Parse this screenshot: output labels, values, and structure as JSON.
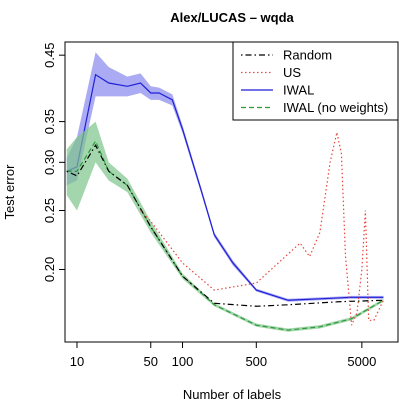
{
  "chart_data": {
    "type": "line",
    "title": "Alex/LUCAS – wqda",
    "x_label": "Number of labels",
    "y_label": "Test error",
    "xlog": true,
    "ylog": true,
    "xlim": [
      7.7,
      11000
    ],
    "ylim": [
      0.152,
      0.473
    ],
    "xticks": [
      10,
      50,
      100,
      500,
      5000
    ],
    "yticks": [
      {
        "value": 0.2,
        "label": "0.20"
      },
      {
        "value": 0.25,
        "label": "0.25"
      },
      {
        "value": 0.3,
        "label": "0.30"
      },
      {
        "value": 0.35,
        "label": "0.35"
      },
      {
        "value": 0.45,
        "label": "0.45"
      }
    ],
    "legend": "top-right",
    "series": [
      {
        "name": "Random",
        "color": "#000000",
        "style": "dotdash",
        "x": [
          8,
          10,
          15,
          20,
          30,
          50,
          100,
          200,
          500,
          1000,
          3000,
          8000
        ],
        "values": [
          0.29,
          0.285,
          0.32,
          0.29,
          0.275,
          0.235,
          0.195,
          0.176,
          0.174,
          0.175,
          0.177,
          0.178
        ]
      },
      {
        "name": "US",
        "color": "#e8453c",
        "style": "dotted",
        "x": [
          40,
          50,
          100,
          200,
          500,
          1300,
          1600,
          2000,
          2500,
          2900,
          3200,
          3500,
          4000,
          4500,
          5000,
          5400,
          5800,
          6500,
          8000
        ],
        "values": [
          0.25,
          0.24,
          0.205,
          0.185,
          0.19,
          0.221,
          0.21,
          0.23,
          0.3,
          0.336,
          0.31,
          0.21,
          0.162,
          0.17,
          0.2,
          0.25,
          0.165,
          0.165,
          0.178
        ]
      },
      {
        "name": "IWAL",
        "color": "#1f1fd6",
        "style": "solid",
        "band": "#8888ee",
        "x": [
          8,
          10,
          15,
          20,
          30,
          40,
          50,
          60,
          80,
          100,
          150,
          200,
          300,
          500,
          1000,
          2000,
          4000,
          8000
        ],
        "values": [
          0.29,
          0.295,
          0.418,
          0.405,
          0.4,
          0.405,
          0.39,
          0.39,
          0.38,
          0.34,
          0.27,
          0.228,
          0.205,
          0.185,
          0.178,
          0.179,
          0.18,
          0.18
        ],
        "lower": [
          0.275,
          0.28,
          0.385,
          0.385,
          0.385,
          0.39,
          0.38,
          0.38,
          0.372,
          0.335,
          0.267,
          0.226,
          0.203,
          0.184,
          0.177,
          0.178,
          0.179,
          0.179
        ],
        "upper": [
          0.305,
          0.33,
          0.455,
          0.43,
          0.415,
          0.42,
          0.4,
          0.398,
          0.388,
          0.345,
          0.273,
          0.23,
          0.207,
          0.186,
          0.179,
          0.18,
          0.181,
          0.181
        ]
      },
      {
        "name": "IWAL (no weights)",
        "color": "#2e9a3c",
        "style": "dashed",
        "band": "#7ec48a",
        "x": [
          8,
          10,
          15,
          20,
          30,
          50,
          100,
          200,
          500,
          1000,
          2000,
          4000,
          8000
        ],
        "values": [
          0.29,
          0.29,
          0.325,
          0.29,
          0.275,
          0.235,
          0.195,
          0.175,
          0.162,
          0.159,
          0.161,
          0.166,
          0.178
        ],
        "lower": [
          0.265,
          0.25,
          0.3,
          0.28,
          0.268,
          0.23,
          0.193,
          0.174,
          0.161,
          0.158,
          0.16,
          0.165,
          0.177
        ],
        "upper": [
          0.315,
          0.33,
          0.35,
          0.3,
          0.282,
          0.24,
          0.197,
          0.176,
          0.163,
          0.16,
          0.162,
          0.167,
          0.179
        ]
      }
    ]
  }
}
